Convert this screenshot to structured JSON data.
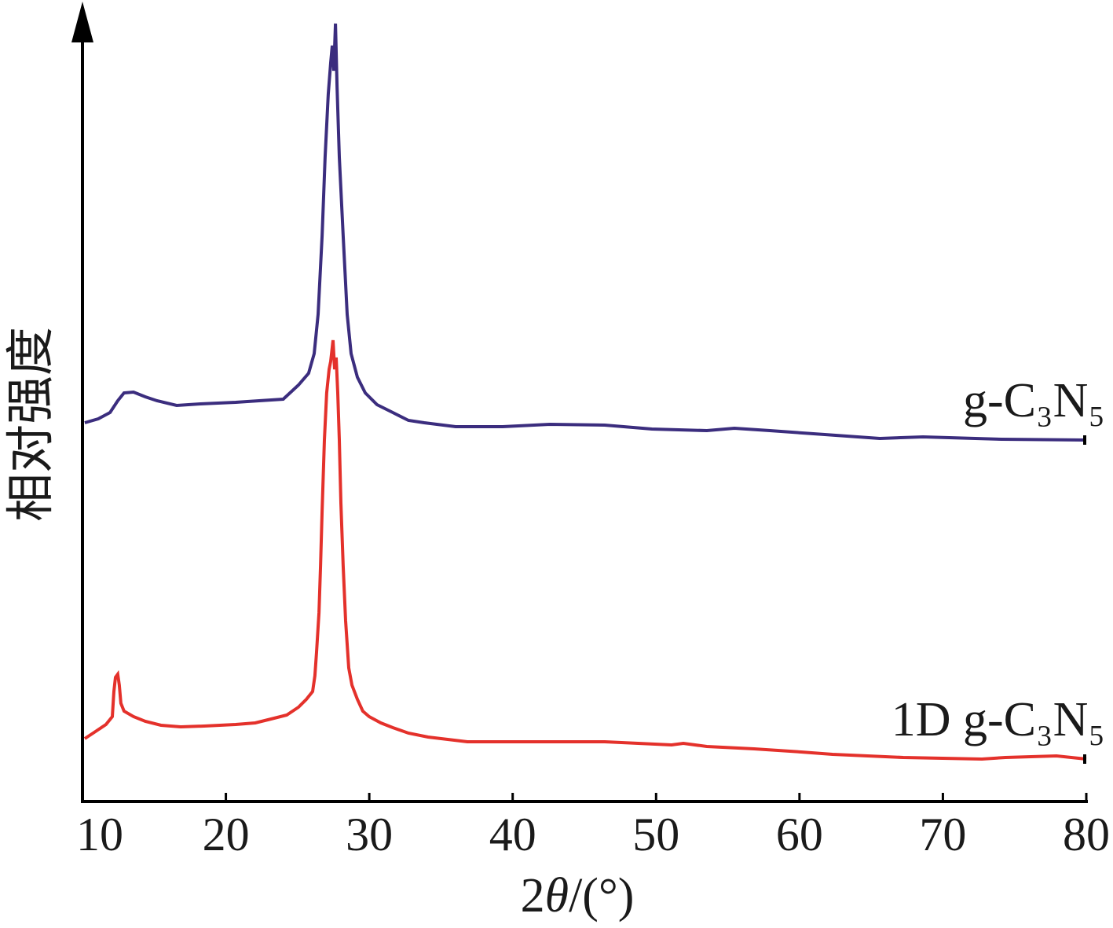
{
  "chart_data": {
    "type": "line",
    "xlabel": "2θ/(°)",
    "ylabel": "相对强度",
    "xlim": [
      10,
      80
    ],
    "ylim": [
      0,
      100
    ],
    "xticks": [
      10,
      20,
      30,
      40,
      50,
      60,
      70,
      80
    ],
    "xtick_labels": [
      "10",
      "20",
      "30",
      "40",
      "50",
      "60",
      "70",
      "80"
    ],
    "grid": false,
    "legend": "inline-right",
    "series": [
      {
        "name": "g-C₃N₅",
        "color": "#3b2d7e",
        "x": [
          10.16,
          11.1,
          11.92,
          12.46,
          12.9,
          13.56,
          14.38,
          15.2,
          16.57,
          18.22,
          20.68,
          22.32,
          24.0,
          25.06,
          25.77,
          26.16,
          26.43,
          26.71,
          26.92,
          27.14,
          27.31,
          27.42,
          27.53,
          27.64,
          27.75,
          27.91,
          28.18,
          28.46,
          28.73,
          29.17,
          29.72,
          30.54,
          31.64,
          32.73,
          33.83,
          36.02,
          39.3,
          42.59,
          46.42,
          49.71,
          53.54,
          55.46,
          57.93,
          61.76,
          65.6,
          68.61,
          74.09,
          80.0
        ],
        "y": [
          48.2,
          48.7,
          49.5,
          51.0,
          52.0,
          52.1,
          51.5,
          51.0,
          50.4,
          50.6,
          50.8,
          51.0,
          51.2,
          53.0,
          54.5,
          57.0,
          62.0,
          72.0,
          82.0,
          90.0,
          94.0,
          96.2,
          93.0,
          99.0,
          91.0,
          82.0,
          72.0,
          62.0,
          57.0,
          54.0,
          52.0,
          50.5,
          49.5,
          48.5,
          48.2,
          47.7,
          47.7,
          48.0,
          47.9,
          47.4,
          47.2,
          47.5,
          47.2,
          46.7,
          46.2,
          46.4,
          46.1,
          46.0
        ]
      },
      {
        "name": "1D g-C₃N₅",
        "color": "#e4312b",
        "x": [
          10.16,
          10.82,
          11.64,
          12.08,
          12.19,
          12.3,
          12.46,
          12.57,
          12.68,
          12.9,
          13.56,
          14.38,
          15.48,
          16.85,
          18.49,
          20.68,
          22.05,
          23.15,
          24.24,
          25.06,
          25.61,
          26.05,
          26.21,
          26.32,
          26.49,
          26.6,
          26.71,
          26.87,
          27.03,
          27.2,
          27.31,
          27.47,
          27.58,
          27.69,
          27.8,
          27.91,
          28.02,
          28.18,
          28.35,
          28.57,
          28.79,
          29.17,
          29.55,
          29.99,
          30.81,
          31.64,
          32.73,
          34.1,
          36.84,
          42.59,
          46.42,
          51.08,
          51.9,
          53.54,
          56.83,
          60.12,
          62.31,
          67.24,
          72.72,
          74.36,
          77.92,
          80.0
        ],
        "y": [
          8.0,
          8.8,
          9.8,
          10.8,
          14.0,
          15.8,
          16.2,
          14.8,
          12.5,
          11.5,
          10.8,
          10.2,
          9.7,
          9.5,
          9.6,
          9.8,
          10.0,
          10.5,
          11.0,
          12.0,
          13.0,
          14.0,
          16.0,
          19.0,
          24.0,
          30.0,
          37.0,
          46.0,
          52.0,
          55.0,
          56.0,
          58.7,
          55.0,
          56.5,
          52.0,
          46.0,
          38.0,
          30.0,
          23.0,
          17.0,
          14.8,
          13.0,
          11.5,
          10.8,
          10.0,
          9.4,
          8.7,
          8.2,
          7.6,
          7.6,
          7.6,
          7.2,
          7.4,
          7.0,
          6.7,
          6.3,
          6.0,
          5.6,
          5.4,
          5.6,
          5.8,
          5.4
        ]
      }
    ]
  }
}
